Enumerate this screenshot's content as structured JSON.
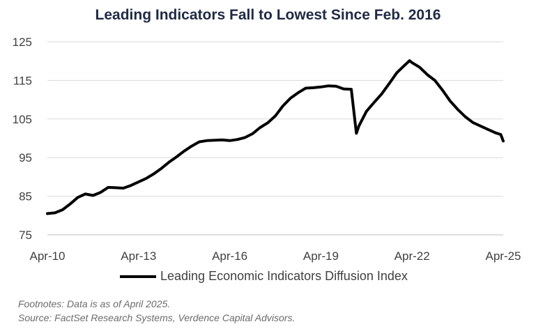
{
  "chart_data": {
    "type": "line",
    "title": "Leading Indicators Fall to Lowest Since Feb. 2016",
    "xlabel": "",
    "ylabel": "",
    "x_start": "2010-04",
    "x_end": "2025-04",
    "xticks": [
      {
        "date": "2010-04",
        "label": "Apr-10"
      },
      {
        "date": "2013-04",
        "label": "Apr-13"
      },
      {
        "date": "2016-04",
        "label": "Apr-16"
      },
      {
        "date": "2019-04",
        "label": "Apr-19"
      },
      {
        "date": "2022-04",
        "label": "Apr-22"
      },
      {
        "date": "2025-04",
        "label": "Apr-25"
      }
    ],
    "ylim": [
      75,
      125
    ],
    "yticks": [
      75,
      85,
      95,
      105,
      115,
      125
    ],
    "grid": "horizontal",
    "legend_position": "bottom",
    "series": [
      {
        "name": "Leading Economic Indicators Diffusion Index",
        "color": "#000000",
        "points": [
          [
            "2010-04",
            80.5
          ],
          [
            "2010-07",
            80.7
          ],
          [
            "2010-10",
            81.5
          ],
          [
            "2011-01",
            83.0
          ],
          [
            "2011-04",
            84.7
          ],
          [
            "2011-07",
            85.6
          ],
          [
            "2011-10",
            85.2
          ],
          [
            "2012-01",
            86.0
          ],
          [
            "2012-04",
            87.3
          ],
          [
            "2012-07",
            87.2
          ],
          [
            "2012-10",
            87.1
          ],
          [
            "2013-01",
            87.8
          ],
          [
            "2013-04",
            88.7
          ],
          [
            "2013-07",
            89.6
          ],
          [
            "2013-10",
            90.8
          ],
          [
            "2014-01",
            92.2
          ],
          [
            "2014-04",
            93.8
          ],
          [
            "2014-07",
            95.2
          ],
          [
            "2014-10",
            96.7
          ],
          [
            "2015-01",
            98.0
          ],
          [
            "2015-04",
            99.1
          ],
          [
            "2015-07",
            99.4
          ],
          [
            "2015-10",
            99.5
          ],
          [
            "2016-01",
            99.6
          ],
          [
            "2016-04",
            99.4
          ],
          [
            "2016-07",
            99.7
          ],
          [
            "2016-10",
            100.2
          ],
          [
            "2017-01",
            101.2
          ],
          [
            "2017-04",
            102.8
          ],
          [
            "2017-07",
            104.0
          ],
          [
            "2017-10",
            105.8
          ],
          [
            "2018-01",
            108.4
          ],
          [
            "2018-04",
            110.4
          ],
          [
            "2018-07",
            111.8
          ],
          [
            "2018-10",
            113.0
          ],
          [
            "2019-01",
            113.1
          ],
          [
            "2019-04",
            113.3
          ],
          [
            "2019-07",
            113.6
          ],
          [
            "2019-10",
            113.5
          ],
          [
            "2020-01",
            112.8
          ],
          [
            "2020-04",
            112.7
          ],
          [
            "2020-06",
            101.3
          ],
          [
            "2020-07",
            103.2
          ],
          [
            "2020-10",
            107.0
          ],
          [
            "2021-01",
            109.3
          ],
          [
            "2021-04",
            111.5
          ],
          [
            "2021-07",
            114.2
          ],
          [
            "2021-10",
            117.0
          ],
          [
            "2022-01",
            118.9
          ],
          [
            "2022-03",
            120.1
          ],
          [
            "2022-04",
            119.6
          ],
          [
            "2022-07",
            118.4
          ],
          [
            "2022-10",
            116.5
          ],
          [
            "2023-01",
            115.0
          ],
          [
            "2023-04",
            112.5
          ],
          [
            "2023-07",
            109.7
          ],
          [
            "2023-10",
            107.5
          ],
          [
            "2024-01",
            105.6
          ],
          [
            "2024-04",
            104.1
          ],
          [
            "2024-07",
            103.2
          ],
          [
            "2024-10",
            102.3
          ],
          [
            "2025-01",
            101.4
          ],
          [
            "2025-03",
            101.0
          ],
          [
            "2025-04",
            99.3
          ]
        ]
      }
    ]
  },
  "footnotes": {
    "line1": "Footnotes: Data is as of April 2025.",
    "line2": "Source: FactSet Research Systems, Verdence Capital Advisors."
  }
}
